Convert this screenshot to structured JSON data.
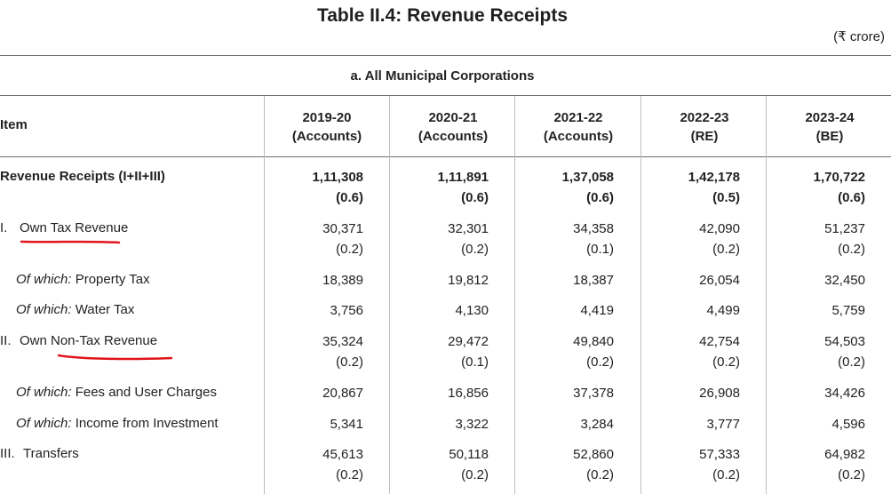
{
  "title": "Table II.4: Revenue Receipts",
  "unit": "(₹ crore)",
  "section_title": "a. All Municipal Corporations",
  "item_header": "Item",
  "columns": [
    {
      "year": "2019-20",
      "type": "(Accounts)"
    },
    {
      "year": "2020-21",
      "type": "(Accounts)"
    },
    {
      "year": "2021-22",
      "type": "(Accounts)"
    },
    {
      "year": "2022-23",
      "type": "(RE)"
    },
    {
      "year": "2023-24",
      "type": "(BE)"
    }
  ],
  "rows": [
    {
      "num": "",
      "prefix": "",
      "label": "Revenue Receipts (I+II+III)",
      "bold": true,
      "values": [
        "1,11,308",
        "1,11,891",
        "1,37,058",
        "1,42,178",
        "1,70,722"
      ],
      "shares": [
        "(0.6)",
        "(0.6)",
        "(0.6)",
        "(0.5)",
        "(0.6)"
      ]
    },
    {
      "num": "I.",
      "prefix": "",
      "label": "Own Tax Revenue",
      "bold": false,
      "values": [
        "30,371",
        "32,301",
        "34,358",
        "42,090",
        "51,237"
      ],
      "shares": [
        "(0.2)",
        "(0.2)",
        "(0.1)",
        "(0.2)",
        "(0.2)"
      ]
    },
    {
      "num": "",
      "prefix": "Of which:",
      "label": "Property Tax",
      "bold": false,
      "values": [
        "18,389",
        "19,812",
        "18,387",
        "26,054",
        "32,450"
      ],
      "shares": []
    },
    {
      "num": "",
      "prefix": "Of which:",
      "label": "Water Tax",
      "bold": false,
      "values": [
        "3,756",
        "4,130",
        "4,419",
        "4,499",
        "5,759"
      ],
      "shares": []
    },
    {
      "num": "II.",
      "prefix": "",
      "label": "Own Non-Tax Revenue",
      "bold": false,
      "values": [
        "35,324",
        "29,472",
        "49,840",
        "42,754",
        "54,503"
      ],
      "shares": [
        "(0.2)",
        "(0.1)",
        "(0.2)",
        "(0.2)",
        "(0.2)"
      ]
    },
    {
      "num": "",
      "prefix": "Of which:",
      "label": "Fees and User Charges",
      "bold": false,
      "values": [
        "20,867",
        "16,856",
        "37,378",
        "26,908",
        "34,426"
      ],
      "shares": []
    },
    {
      "num": "",
      "prefix": "Of which:",
      "label": "Income from Investment",
      "bold": false,
      "values": [
        "5,341",
        "3,322",
        "3,284",
        "3,777",
        "4,596"
      ],
      "shares": []
    },
    {
      "num": "III.",
      "prefix": "",
      "label": "Transfers",
      "bold": false,
      "values": [
        "45,613",
        "50,118",
        "52,860",
        "57,333",
        "64,982"
      ],
      "shares": [
        "(0.2)",
        "(0.2)",
        "(0.2)",
        "(0.2)",
        "(0.2)"
      ]
    }
  ],
  "annotation_color": "#e0141b"
}
